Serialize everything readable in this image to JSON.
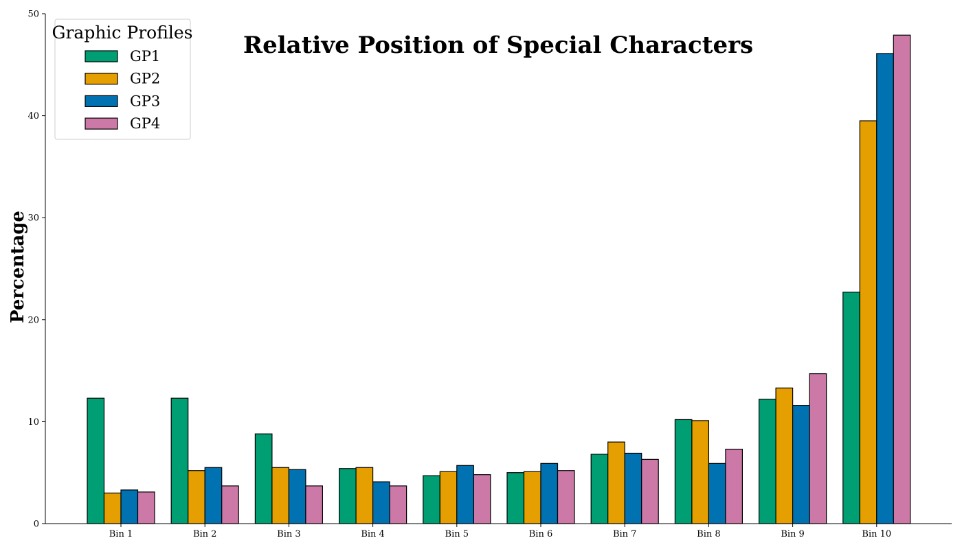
{
  "chart_data": {
    "type": "bar",
    "title": "Relative Position of Special Characters",
    "xlabel": "",
    "ylabel": "Percentage",
    "ylim": [
      0,
      50
    ],
    "yticks": [
      0,
      10,
      20,
      30,
      40,
      50
    ],
    "grid": false,
    "legend": {
      "title": "Graphic Profiles",
      "placement": "top-left"
    },
    "categories": [
      "Bin 1",
      "Bin 2",
      "Bin 3",
      "Bin 4",
      "Bin 5",
      "Bin 6",
      "Bin 7",
      "Bin 8",
      "Bin 9",
      "Bin 10"
    ],
    "series": [
      {
        "name": "GP1",
        "color": "#009E73",
        "values": [
          12.3,
          12.3,
          8.8,
          5.4,
          4.7,
          5.0,
          6.8,
          10.2,
          12.2,
          22.7
        ]
      },
      {
        "name": "GP2",
        "color": "#E69F00",
        "values": [
          3.0,
          5.2,
          5.5,
          5.5,
          5.1,
          5.1,
          8.0,
          10.1,
          13.3,
          39.5
        ]
      },
      {
        "name": "GP3",
        "color": "#0072B2",
        "values": [
          3.3,
          5.5,
          5.3,
          4.1,
          5.7,
          5.9,
          6.9,
          5.9,
          11.6,
          46.1
        ]
      },
      {
        "name": "GP4",
        "color": "#CC79A7",
        "values": [
          3.1,
          3.7,
          3.7,
          3.7,
          4.8,
          5.2,
          6.3,
          7.3,
          14.7,
          47.9
        ]
      }
    ]
  }
}
